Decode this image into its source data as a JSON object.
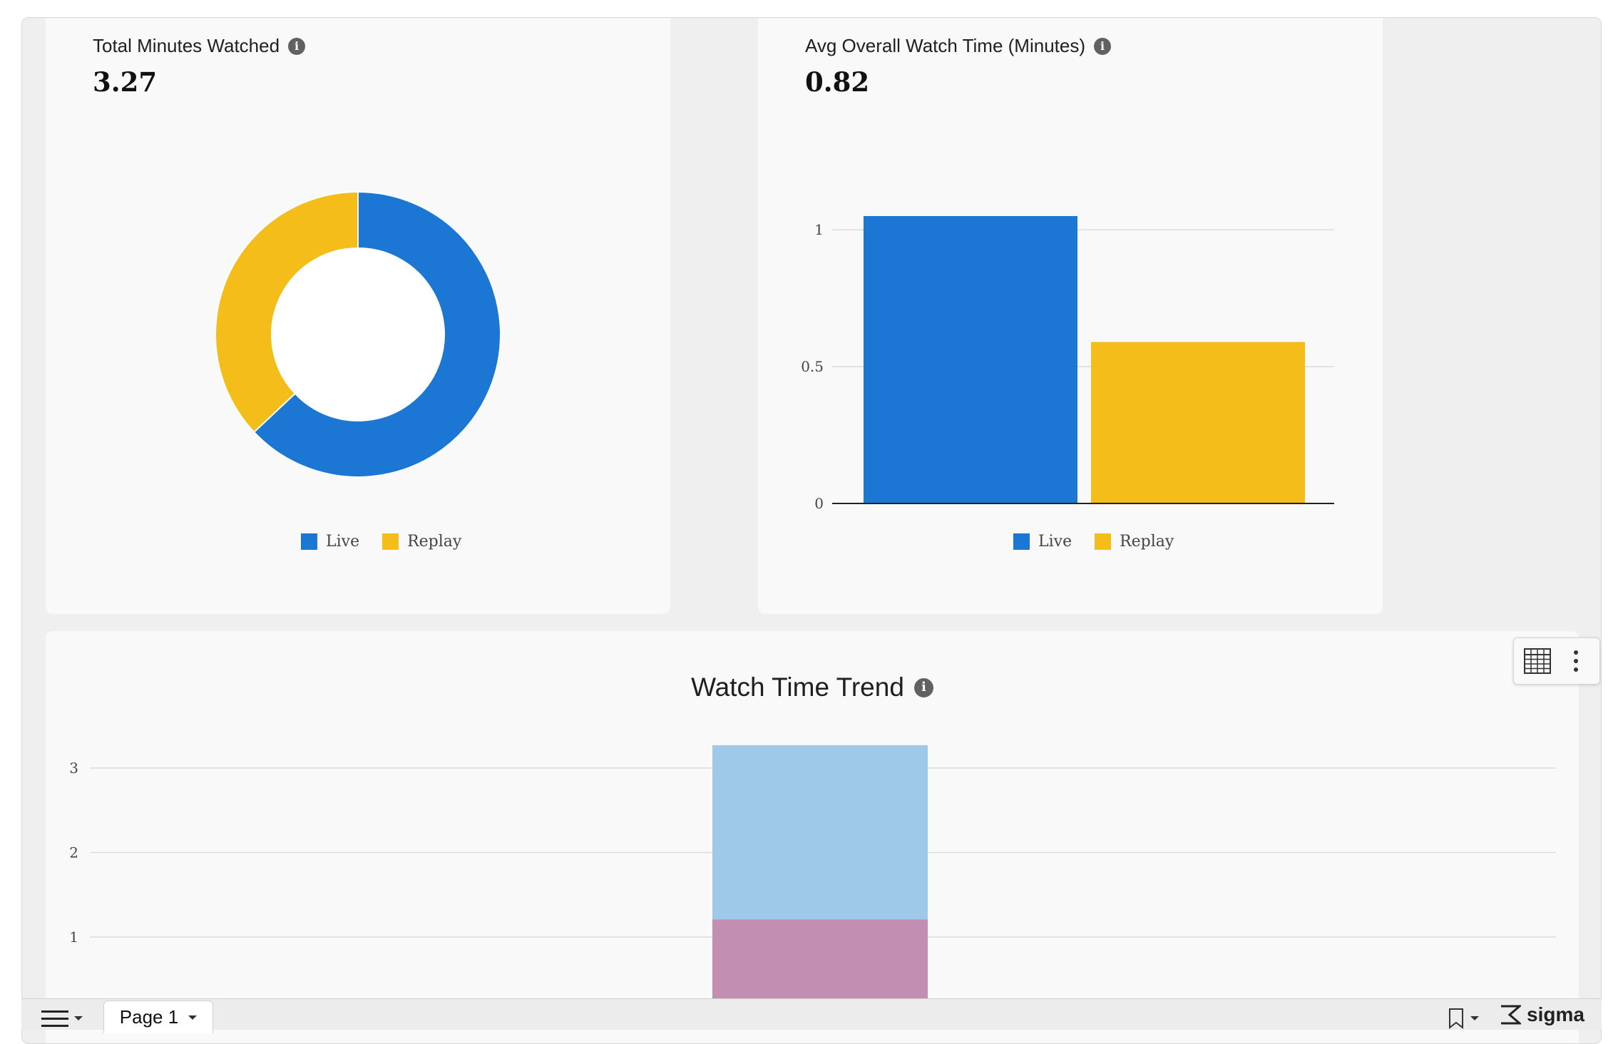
{
  "colors": {
    "live": "#1b77d3",
    "replay": "#f5bd19",
    "trend_replay": "#9fc9e8",
    "trend_live": "#c28fb3"
  },
  "kpis": [
    {
      "title": "Total Minutes Watched",
      "value": "3.27"
    },
    {
      "title": "Avg Overall Watch Time (Minutes)",
      "value": "0.82"
    }
  ],
  "legend": {
    "live": "Live",
    "replay": "Replay"
  },
  "chart_data": [
    {
      "type": "pie",
      "donut": true,
      "categories": [
        "Live",
        "Replay"
      ],
      "values": [
        2.06,
        1.21
      ],
      "legend_position": "bottom"
    },
    {
      "type": "bar",
      "categories": [
        "Live",
        "Replay"
      ],
      "values": [
        1.05,
        0.59
      ],
      "ylim": [
        0,
        1.05
      ],
      "yticks": [
        "0",
        "0.5",
        "1"
      ],
      "grid": true,
      "legend_position": "bottom"
    },
    {
      "type": "bar",
      "stacked": true,
      "title": "Watch Time Trend",
      "categories": [
        ""
      ],
      "series": [
        {
          "values": [
            1.21
          ]
        },
        {
          "values": [
            2.06
          ]
        }
      ],
      "yticks": [
        "1",
        "2",
        "3"
      ],
      "grid": true
    }
  ],
  "trend": {
    "title": "Watch Time Trend"
  },
  "bottom_bar": {
    "page_tab": "Page 1",
    "brand": "sigma"
  }
}
